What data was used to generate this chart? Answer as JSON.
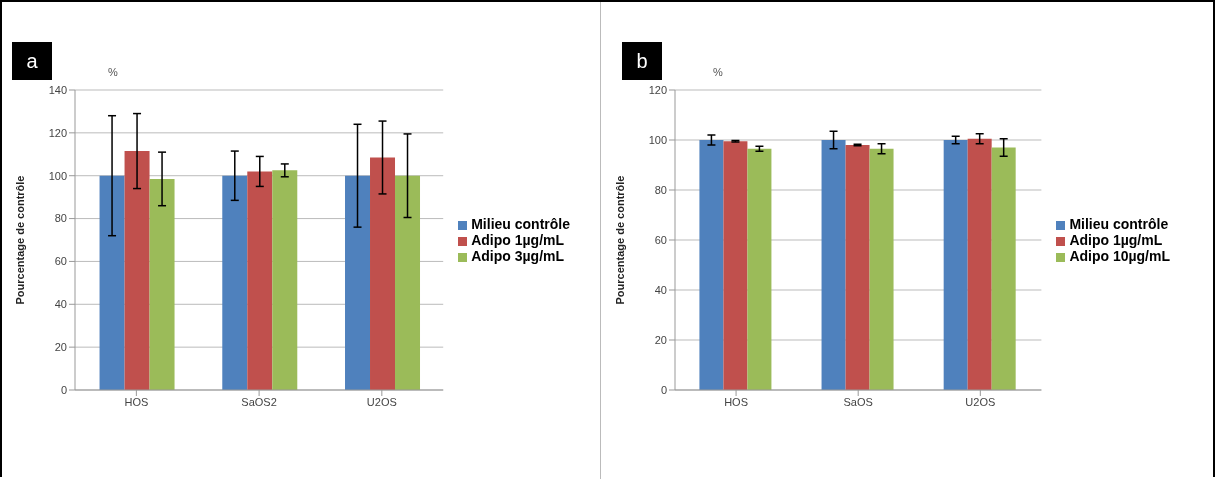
{
  "chart_data": [
    {
      "type": "bar",
      "title": "a",
      "ylabel": "Pourcentage de contrôle",
      "annotations": [
        "%"
      ],
      "categories": [
        "HOS",
        "SaOS2",
        "U2OS"
      ],
      "series": [
        {
          "name": "Milieu contrôle",
          "color": "#4f81bd",
          "values": [
            100,
            100,
            100
          ],
          "errors": [
            28,
            11.5,
            24
          ]
        },
        {
          "name": "Adipo 1µg/mL",
          "color": "#c0504d",
          "values": [
            111.5,
            102,
            108.5
          ],
          "errors": [
            17.5,
            7,
            17
          ]
        },
        {
          "name": "Adipo 3µg/mL",
          "color": "#9bbb59",
          "values": [
            98.5,
            102.5,
            100
          ],
          "errors": [
            12.5,
            3,
            19.5
          ]
        }
      ],
      "ylim": [
        0,
        140
      ],
      "yticks": [
        0,
        20,
        40,
        60,
        80,
        100,
        120,
        140
      ],
      "grid": "y",
      "legend": "right"
    },
    {
      "type": "bar",
      "title": "b",
      "ylabel": "Pourcentage de contrôle",
      "annotations": [
        "%"
      ],
      "categories": [
        "HOS",
        "SaOS",
        "U2OS"
      ],
      "series": [
        {
          "name": "Milieu contrôle",
          "color": "#4f81bd",
          "values": [
            100,
            100,
            100
          ],
          "errors": [
            2,
            3.5,
            1.5
          ]
        },
        {
          "name": "Adipo 1µg/mL",
          "color": "#c0504d",
          "values": [
            99.5,
            98,
            100.5
          ],
          "errors": [
            0.3,
            0.3,
            2
          ]
        },
        {
          "name": "Adipo 10µg/mL",
          "color": "#9bbb59",
          "values": [
            96.5,
            96.5,
            97
          ],
          "errors": [
            1,
            2,
            3.5
          ]
        }
      ],
      "ylim": [
        0,
        120
      ],
      "yticks": [
        0,
        20,
        40,
        60,
        80,
        100,
        120
      ],
      "grid": "y",
      "legend": "right"
    }
  ]
}
